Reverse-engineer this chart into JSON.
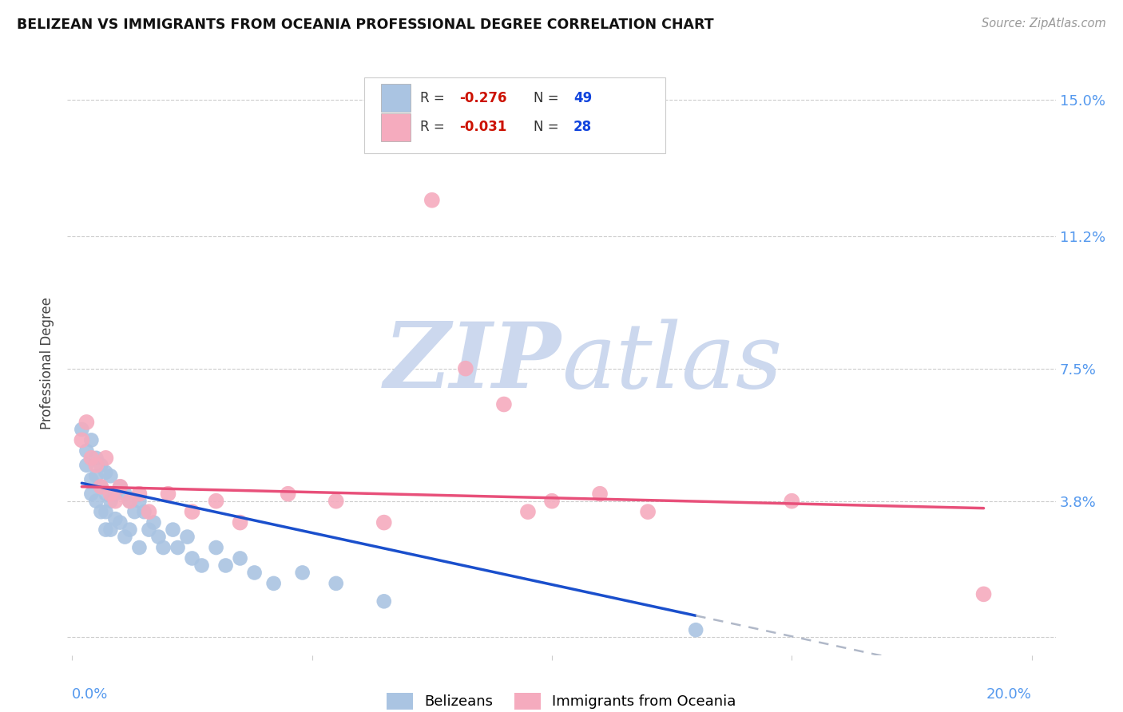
{
  "title": "BELIZEAN VS IMMIGRANTS FROM OCEANIA PROFESSIONAL DEGREE CORRELATION CHART",
  "source": "Source: ZipAtlas.com",
  "ylabel": "Professional Degree",
  "y_ticks": [
    0.0,
    0.038,
    0.075,
    0.112,
    0.15
  ],
  "y_tick_labels": [
    "",
    "3.8%",
    "7.5%",
    "11.2%",
    "15.0%"
  ],
  "x_ticks": [
    0.0,
    0.05,
    0.1,
    0.15,
    0.2
  ],
  "xlim": [
    -0.001,
    0.205
  ],
  "ylim": [
    -0.005,
    0.158
  ],
  "belizean_R": -0.276,
  "belizean_N": 49,
  "oceania_R": -0.031,
  "oceania_N": 28,
  "belizean_color": "#aac4e2",
  "oceania_color": "#f5abbe",
  "trendline_blue": "#1a4fcc",
  "trendline_pink": "#e8507a",
  "trendline_dashed_color": "#b0b8c8",
  "legend_text_color": "#333333",
  "legend_R_color": "#cc1100",
  "legend_N_color": "#1144dd",
  "watermark_zip_color": "#ccd8ee",
  "watermark_atlas_color": "#ccd8ee",
  "background_color": "#ffffff",
  "grid_color": "#cccccc",
  "right_tick_color": "#5599ee",
  "bottom_tick_color": "#5599ee",
  "belizean_x": [
    0.002,
    0.003,
    0.003,
    0.004,
    0.004,
    0.004,
    0.005,
    0.005,
    0.005,
    0.006,
    0.006,
    0.006,
    0.007,
    0.007,
    0.007,
    0.007,
    0.008,
    0.008,
    0.008,
    0.009,
    0.009,
    0.01,
    0.01,
    0.011,
    0.011,
    0.012,
    0.012,
    0.013,
    0.014,
    0.014,
    0.015,
    0.016,
    0.017,
    0.018,
    0.019,
    0.021,
    0.022,
    0.024,
    0.025,
    0.027,
    0.03,
    0.032,
    0.035,
    0.038,
    0.042,
    0.048,
    0.055,
    0.065,
    0.13
  ],
  "belizean_y": [
    0.058,
    0.048,
    0.052,
    0.055,
    0.044,
    0.04,
    0.05,
    0.045,
    0.038,
    0.048,
    0.042,
    0.035,
    0.046,
    0.04,
    0.035,
    0.03,
    0.045,
    0.038,
    0.03,
    0.04,
    0.033,
    0.042,
    0.032,
    0.04,
    0.028,
    0.038,
    0.03,
    0.035,
    0.038,
    0.025,
    0.035,
    0.03,
    0.032,
    0.028,
    0.025,
    0.03,
    0.025,
    0.028,
    0.022,
    0.02,
    0.025,
    0.02,
    0.022,
    0.018,
    0.015,
    0.018,
    0.015,
    0.01,
    0.002
  ],
  "oceania_x": [
    0.002,
    0.003,
    0.004,
    0.005,
    0.006,
    0.007,
    0.008,
    0.009,
    0.01,
    0.012,
    0.014,
    0.016,
    0.02,
    0.025,
    0.03,
    0.035,
    0.045,
    0.055,
    0.065,
    0.075,
    0.082,
    0.09,
    0.095,
    0.1,
    0.11,
    0.12,
    0.15,
    0.19
  ],
  "oceania_y": [
    0.055,
    0.06,
    0.05,
    0.048,
    0.042,
    0.05,
    0.04,
    0.038,
    0.042,
    0.038,
    0.04,
    0.035,
    0.04,
    0.035,
    0.038,
    0.032,
    0.04,
    0.038,
    0.032,
    0.122,
    0.075,
    0.065,
    0.035,
    0.038,
    0.04,
    0.035,
    0.038,
    0.012
  ],
  "trendline_b_x0": 0.002,
  "trendline_b_x1": 0.13,
  "trendline_b_y0": 0.043,
  "trendline_b_y1": 0.006,
  "trendline_dash_x0": 0.13,
  "trendline_dash_x1": 0.2,
  "trendline_o_x0": 0.002,
  "trendline_o_x1": 0.19,
  "trendline_o_y0": 0.042,
  "trendline_o_y1": 0.036
}
